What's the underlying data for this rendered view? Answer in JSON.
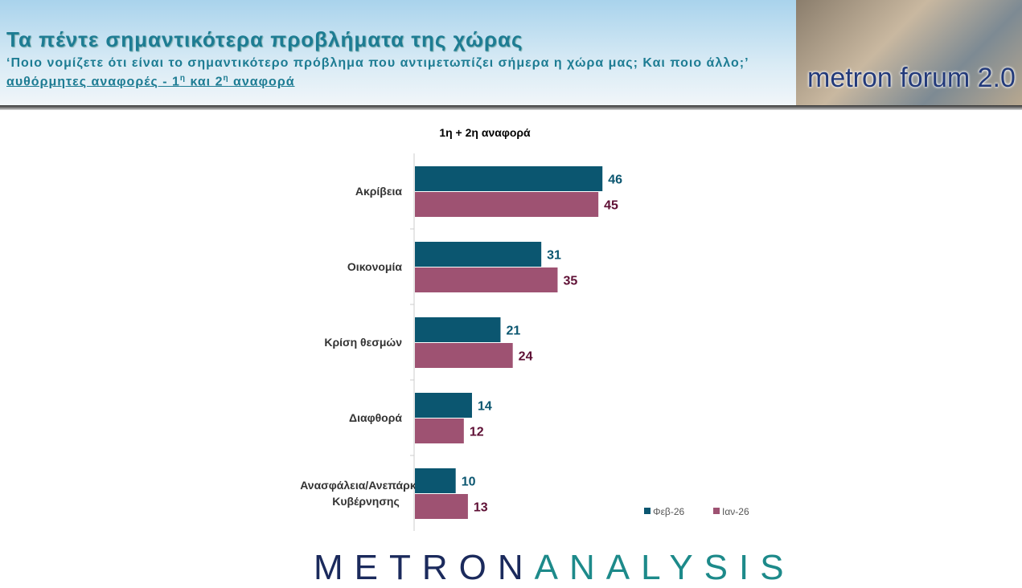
{
  "header": {
    "title": "Τα πέντε σημαντικότερα προβλήματα της χώρας",
    "subtitle": "‘Ποιο νομίζετε ότι είναι το σημαντικότερο πρόβλημα που αντιμετωπίζει σήμερα η χώρα μας; Και ποιο άλλο;’",
    "note_prefix": "αυθόρμητες αναφορές - ",
    "note_1": "1",
    "note_sup1": "η",
    "note_mid": " και 2",
    "note_sup2": "η",
    "note_end": " αναφορά",
    "logo": "metron forum 2.0"
  },
  "footer": {
    "logo_a": "METRON",
    "logo_b": "ANALYSIS"
  },
  "chart_data": {
    "type": "bar",
    "orientation": "horizontal",
    "title": "1η + 2η αναφορά",
    "categories": [
      "Ακρίβεια",
      "Οικονομία",
      "Κρίση θεσμών",
      "Διαφθορά",
      "Ανασφάλεια/Ανεπάρκεια Κυβέρνησης"
    ],
    "series": [
      {
        "name": "Φεβ-26",
        "color": "#0b5670",
        "label_color": "#0b5670",
        "values": [
          46,
          31,
          21,
          14,
          10
        ]
      },
      {
        "name": "Ιαν-26",
        "color": "#9e5272",
        "label_color": "#5e0f34",
        "values": [
          45,
          35,
          24,
          12,
          13
        ]
      }
    ],
    "legend": "bottom-right",
    "grid": false
  }
}
